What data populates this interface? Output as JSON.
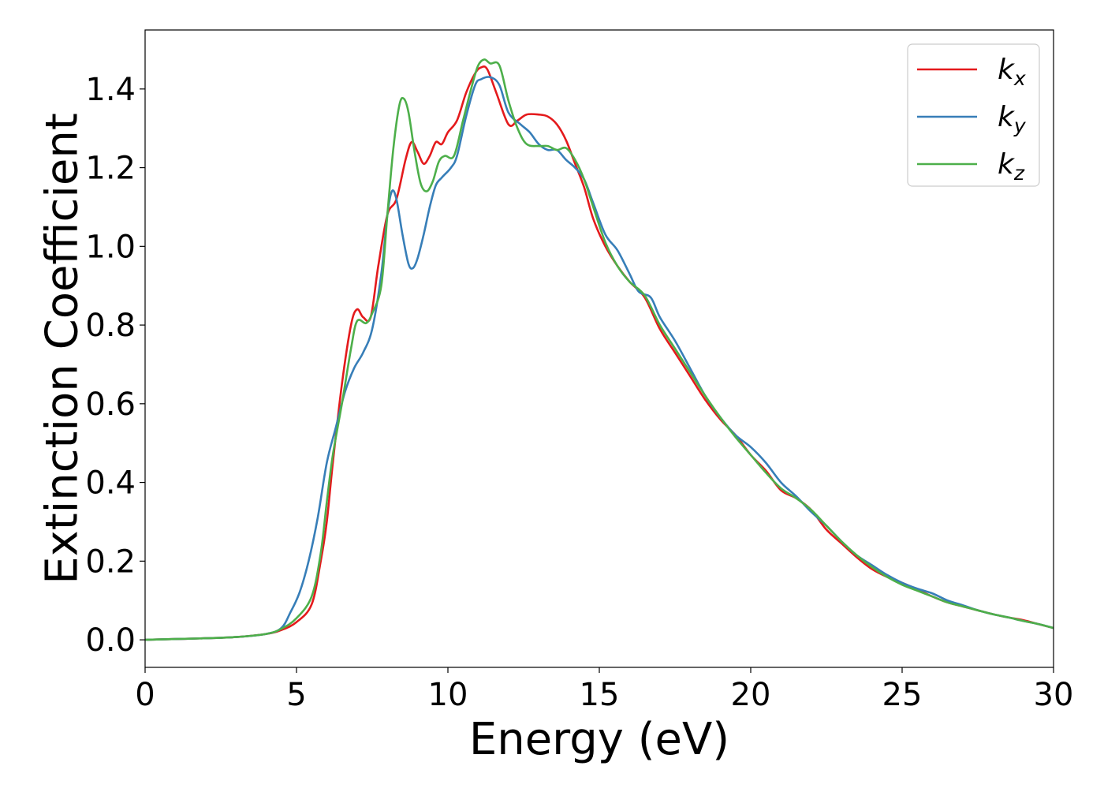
{
  "chart_data": {
    "type": "line",
    "title": "",
    "xlabel": "Energy (eV)",
    "ylabel": "Extinction Coefficient",
    "xlim": [
      0,
      30
    ],
    "ylim": [
      -0.07,
      1.55
    ],
    "xticks": [
      0,
      5,
      10,
      15,
      20,
      25,
      30
    ],
    "xtick_labels": [
      "0",
      "5",
      "10",
      "15",
      "20",
      "25",
      "30"
    ],
    "yticks": [
      0.0,
      0.2,
      0.4,
      0.6,
      0.8,
      1.0,
      1.2,
      1.4
    ],
    "ytick_labels": [
      "0.0",
      "0.2",
      "0.4",
      "0.6",
      "0.8",
      "1.0",
      "1.2",
      "1.4"
    ],
    "grid": false,
    "legend_position": "top-right",
    "series": [
      {
        "name": "k_x",
        "legend_base": "k",
        "legend_sub": "x",
        "color": "#e41a1c",
        "points": [
          [
            0,
            0.0
          ],
          [
            1,
            0.002
          ],
          [
            2,
            0.004
          ],
          [
            3,
            0.007
          ],
          [
            4,
            0.015
          ],
          [
            4.5,
            0.025
          ],
          [
            5,
            0.045
          ],
          [
            5.5,
            0.09
          ],
          [
            5.8,
            0.2
          ],
          [
            6.0,
            0.3
          ],
          [
            6.2,
            0.45
          ],
          [
            6.5,
            0.65
          ],
          [
            6.8,
            0.8
          ],
          [
            7.0,
            0.84
          ],
          [
            7.2,
            0.82
          ],
          [
            7.45,
            0.82
          ],
          [
            7.7,
            0.95
          ],
          [
            8.0,
            1.08
          ],
          [
            8.3,
            1.12
          ],
          [
            8.6,
            1.22
          ],
          [
            8.8,
            1.265
          ],
          [
            9.0,
            1.24
          ],
          [
            9.2,
            1.21
          ],
          [
            9.4,
            1.23
          ],
          [
            9.6,
            1.265
          ],
          [
            9.8,
            1.26
          ],
          [
            10.0,
            1.29
          ],
          [
            10.3,
            1.32
          ],
          [
            10.6,
            1.39
          ],
          [
            10.9,
            1.44
          ],
          [
            11.1,
            1.455
          ],
          [
            11.3,
            1.45
          ],
          [
            11.6,
            1.39
          ],
          [
            12.0,
            1.31
          ],
          [
            12.3,
            1.32
          ],
          [
            12.6,
            1.335
          ],
          [
            13.0,
            1.335
          ],
          [
            13.3,
            1.33
          ],
          [
            13.6,
            1.31
          ],
          [
            13.9,
            1.27
          ],
          [
            14.2,
            1.21
          ],
          [
            14.5,
            1.15
          ],
          [
            14.8,
            1.07
          ],
          [
            15.2,
            1.0
          ],
          [
            15.6,
            0.95
          ],
          [
            16.0,
            0.91
          ],
          [
            16.5,
            0.87
          ],
          [
            17.0,
            0.79
          ],
          [
            17.5,
            0.73
          ],
          [
            18.0,
            0.67
          ],
          [
            18.5,
            0.61
          ],
          [
            19.0,
            0.56
          ],
          [
            19.5,
            0.52
          ],
          [
            20.0,
            0.47
          ],
          [
            20.5,
            0.43
          ],
          [
            21.0,
            0.38
          ],
          [
            21.5,
            0.36
          ],
          [
            22.0,
            0.33
          ],
          [
            22.5,
            0.28
          ],
          [
            23.0,
            0.245
          ],
          [
            23.5,
            0.21
          ],
          [
            24.0,
            0.18
          ],
          [
            24.5,
            0.16
          ],
          [
            25.0,
            0.145
          ],
          [
            25.5,
            0.128
          ],
          [
            26.0,
            0.11
          ],
          [
            26.5,
            0.095
          ],
          [
            27.0,
            0.085
          ],
          [
            27.5,
            0.075
          ],
          [
            28.0,
            0.065
          ],
          [
            28.5,
            0.057
          ],
          [
            29.0,
            0.05
          ],
          [
            29.5,
            0.04
          ],
          [
            30.0,
            0.03
          ]
        ]
      },
      {
        "name": "k_y",
        "legend_base": "k",
        "legend_sub": "y",
        "color": "#377eb8",
        "points": [
          [
            0,
            0.0
          ],
          [
            1,
            0.002
          ],
          [
            2,
            0.004
          ],
          [
            3,
            0.007
          ],
          [
            4,
            0.015
          ],
          [
            4.5,
            0.03
          ],
          [
            4.8,
            0.07
          ],
          [
            5.1,
            0.12
          ],
          [
            5.4,
            0.2
          ],
          [
            5.7,
            0.31
          ],
          [
            6.0,
            0.45
          ],
          [
            6.3,
            0.54
          ],
          [
            6.6,
            0.63
          ],
          [
            6.9,
            0.69
          ],
          [
            7.2,
            0.73
          ],
          [
            7.5,
            0.79
          ],
          [
            7.8,
            0.93
          ],
          [
            8.0,
            1.08
          ],
          [
            8.15,
            1.14
          ],
          [
            8.3,
            1.12
          ],
          [
            8.5,
            1.03
          ],
          [
            8.7,
            0.955
          ],
          [
            8.85,
            0.945
          ],
          [
            9.0,
            0.97
          ],
          [
            9.2,
            1.03
          ],
          [
            9.4,
            1.1
          ],
          [
            9.6,
            1.155
          ],
          [
            9.8,
            1.175
          ],
          [
            10.1,
            1.2
          ],
          [
            10.3,
            1.23
          ],
          [
            10.6,
            1.33
          ],
          [
            10.9,
            1.41
          ],
          [
            11.1,
            1.425
          ],
          [
            11.4,
            1.43
          ],
          [
            11.7,
            1.41
          ],
          [
            12.0,
            1.34
          ],
          [
            12.4,
            1.31
          ],
          [
            12.7,
            1.29
          ],
          [
            13.0,
            1.26
          ],
          [
            13.3,
            1.245
          ],
          [
            13.6,
            1.245
          ],
          [
            13.9,
            1.22
          ],
          [
            14.2,
            1.2
          ],
          [
            14.5,
            1.17
          ],
          [
            14.8,
            1.11
          ],
          [
            15.2,
            1.03
          ],
          [
            15.6,
            0.99
          ],
          [
            16.0,
            0.93
          ],
          [
            16.3,
            0.885
          ],
          [
            16.7,
            0.87
          ],
          [
            17.0,
            0.82
          ],
          [
            17.5,
            0.76
          ],
          [
            18.0,
            0.69
          ],
          [
            18.5,
            0.62
          ],
          [
            19.0,
            0.565
          ],
          [
            19.5,
            0.52
          ],
          [
            20.0,
            0.49
          ],
          [
            20.5,
            0.45
          ],
          [
            21.0,
            0.4
          ],
          [
            21.5,
            0.365
          ],
          [
            22.0,
            0.325
          ],
          [
            22.5,
            0.29
          ],
          [
            23.0,
            0.25
          ],
          [
            23.5,
            0.215
          ],
          [
            24.0,
            0.19
          ],
          [
            24.5,
            0.165
          ],
          [
            25.0,
            0.145
          ],
          [
            25.5,
            0.13
          ],
          [
            26.0,
            0.118
          ],
          [
            26.5,
            0.1
          ],
          [
            27.0,
            0.088
          ],
          [
            27.5,
            0.075
          ],
          [
            28.0,
            0.065
          ],
          [
            28.5,
            0.057
          ],
          [
            29.0,
            0.048
          ],
          [
            29.5,
            0.04
          ],
          [
            30.0,
            0.03
          ]
        ]
      },
      {
        "name": "k_z",
        "legend_base": "k",
        "legend_sub": "z",
        "color": "#4daf4a",
        "points": [
          [
            0,
            0.0
          ],
          [
            1,
            0.002
          ],
          [
            2,
            0.004
          ],
          [
            3,
            0.007
          ],
          [
            4,
            0.015
          ],
          [
            4.5,
            0.028
          ],
          [
            5,
            0.055
          ],
          [
            5.5,
            0.11
          ],
          [
            5.8,
            0.22
          ],
          [
            6.0,
            0.35
          ],
          [
            6.2,
            0.47
          ],
          [
            6.5,
            0.6
          ],
          [
            6.8,
            0.74
          ],
          [
            7.0,
            0.81
          ],
          [
            7.3,
            0.805
          ],
          [
            7.5,
            0.83
          ],
          [
            7.8,
            0.9
          ],
          [
            8.0,
            1.08
          ],
          [
            8.2,
            1.25
          ],
          [
            8.4,
            1.36
          ],
          [
            8.55,
            1.375
          ],
          [
            8.7,
            1.34
          ],
          [
            8.9,
            1.24
          ],
          [
            9.1,
            1.16
          ],
          [
            9.3,
            1.14
          ],
          [
            9.5,
            1.165
          ],
          [
            9.7,
            1.215
          ],
          [
            9.9,
            1.23
          ],
          [
            10.2,
            1.23
          ],
          [
            10.5,
            1.32
          ],
          [
            10.8,
            1.41
          ],
          [
            11.0,
            1.46
          ],
          [
            11.2,
            1.475
          ],
          [
            11.4,
            1.465
          ],
          [
            11.7,
            1.46
          ],
          [
            12.0,
            1.37
          ],
          [
            12.3,
            1.3
          ],
          [
            12.6,
            1.26
          ],
          [
            13.0,
            1.255
          ],
          [
            13.3,
            1.255
          ],
          [
            13.6,
            1.245
          ],
          [
            13.9,
            1.25
          ],
          [
            14.2,
            1.22
          ],
          [
            14.5,
            1.17
          ],
          [
            14.8,
            1.1
          ],
          [
            15.2,
            1.01
          ],
          [
            15.6,
            0.95
          ],
          [
            16.0,
            0.91
          ],
          [
            16.5,
            0.875
          ],
          [
            17.0,
            0.8
          ],
          [
            17.5,
            0.74
          ],
          [
            18.0,
            0.68
          ],
          [
            18.5,
            0.62
          ],
          [
            19.0,
            0.565
          ],
          [
            19.5,
            0.515
          ],
          [
            20.0,
            0.47
          ],
          [
            20.5,
            0.425
          ],
          [
            21.0,
            0.385
          ],
          [
            21.5,
            0.36
          ],
          [
            22.0,
            0.33
          ],
          [
            22.5,
            0.29
          ],
          [
            23.0,
            0.25
          ],
          [
            23.5,
            0.215
          ],
          [
            24.0,
            0.185
          ],
          [
            24.5,
            0.16
          ],
          [
            25.0,
            0.14
          ],
          [
            25.5,
            0.125
          ],
          [
            26.0,
            0.11
          ],
          [
            26.5,
            0.095
          ],
          [
            27.0,
            0.085
          ],
          [
            27.5,
            0.075
          ],
          [
            28.0,
            0.065
          ],
          [
            28.5,
            0.057
          ],
          [
            29.0,
            0.048
          ],
          [
            29.5,
            0.04
          ],
          [
            30.0,
            0.03
          ]
        ]
      }
    ]
  }
}
